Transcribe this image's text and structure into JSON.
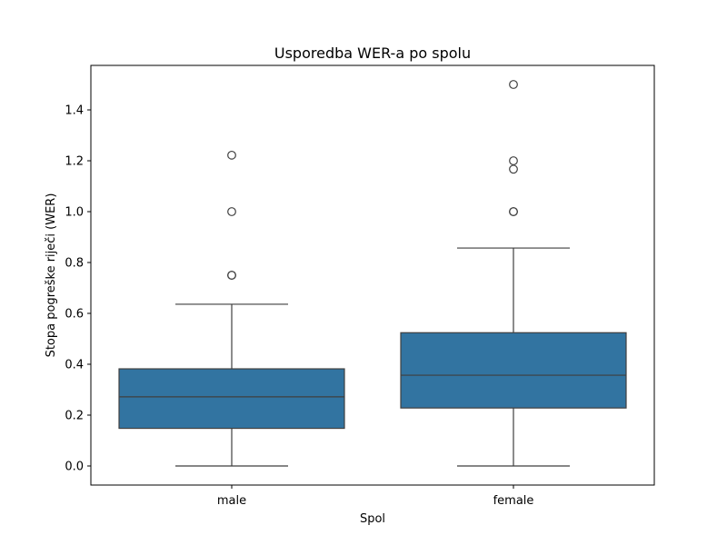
{
  "chart_data": {
    "type": "box",
    "title": "Usporedba WER-a po spolu",
    "xlabel": "Spol",
    "ylabel": "Stopa pogreške riječi (WER)",
    "ylim": [
      -0.075,
      1.575
    ],
    "yticks": [
      "0.0",
      "0.2",
      "0.4",
      "0.6",
      "0.8",
      "1.0",
      "1.2",
      "1.4"
    ],
    "grid": false,
    "box_color": "#3274a1",
    "edge_color": "#3f3f3f",
    "categories": [
      "male",
      "female"
    ],
    "boxes": [
      {
        "category": "male",
        "whisker_low": 0.0,
        "q1": 0.148,
        "median": 0.272,
        "q3": 0.382,
        "whisker_high": 0.636,
        "outliers": [
          0.75,
          0.75,
          1.0,
          1.222
        ]
      },
      {
        "category": "female",
        "whisker_low": 0.0,
        "q1": 0.228,
        "median": 0.357,
        "q3": 0.524,
        "whisker_high": 0.857,
        "outliers": [
          1.0,
          1.0,
          1.167,
          1.2,
          1.5
        ]
      }
    ]
  }
}
